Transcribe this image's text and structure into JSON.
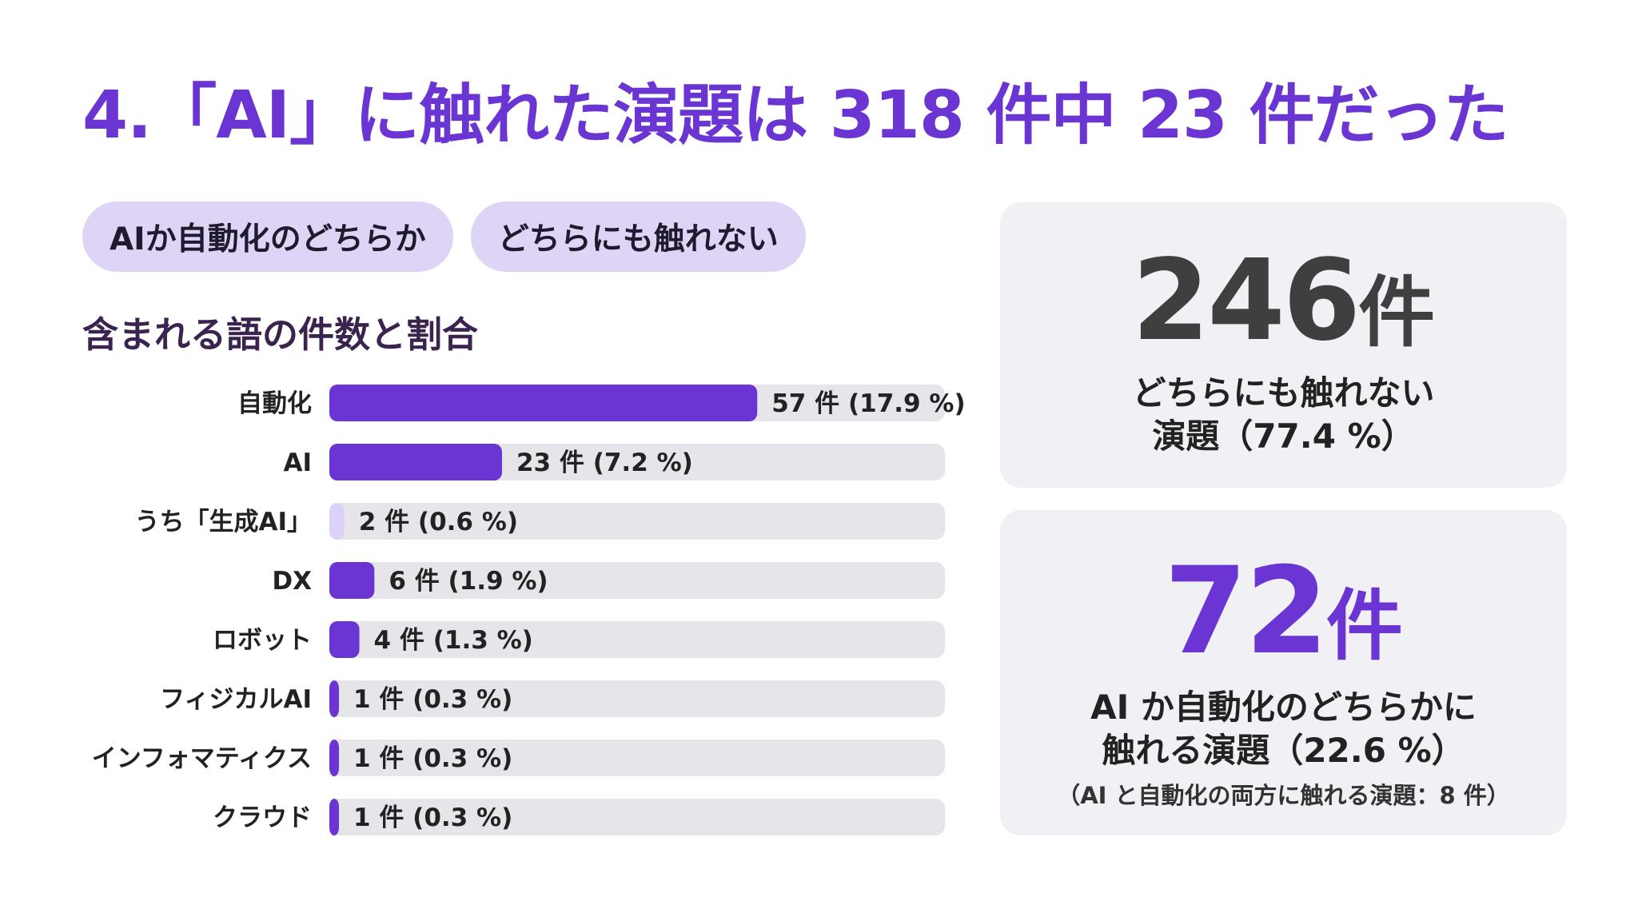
{
  "title": "4.「AI」に触れた演題は 318 件中 23 件だった",
  "chips": [
    "AIか自動化のどちらか",
    "どちらにも触れない"
  ],
  "section_title": "含まれる語の件数と割合",
  "colors": {
    "accent": "#6a35d2",
    "bar_light": "#dcd2f7",
    "track": "#e6e6ea",
    "chip_bg": "#ddd4f6",
    "card_bg": "#f1f1f5"
  },
  "card1": {
    "number": "246",
    "unit": "件",
    "caption_line1": "どちらにも触れない",
    "caption_line2": "演題（77.4 %）"
  },
  "card2": {
    "number": "72",
    "unit": "件",
    "caption_line1": "AI か自動化のどちらかに",
    "caption_line2": "触れる演題（22.6 %）",
    "note": "（AI と自動化の両方に触れる演題：8 件）"
  },
  "chart_data": {
    "type": "bar",
    "orientation": "horizontal",
    "categories": [
      "自動化",
      "AI",
      "うち「生成AI」",
      "DX",
      "ロボット",
      "フィジカルAI",
      "インフォマティクス",
      "クラウド"
    ],
    "values": [
      57,
      23,
      2,
      6,
      4,
      1,
      1,
      1
    ],
    "percentages": [
      17.9,
      7.2,
      0.6,
      1.9,
      1.3,
      0.3,
      0.3,
      0.3
    ],
    "data_labels": [
      "57 件 (17.9 %)",
      "23 件 (7.2 %)",
      "2 件 (0.6 %)",
      "6 件 (1.9 %)",
      "4 件 (1.3 %)",
      "1 件 (0.3 %)",
      "1 件 (0.3 %)",
      "1 件 (0.3 %)"
    ],
    "highlight_light": [
      false,
      false,
      true,
      false,
      false,
      false,
      false,
      false
    ],
    "xlim": [
      0,
      82
    ],
    "grid": false,
    "legend": "none"
  }
}
